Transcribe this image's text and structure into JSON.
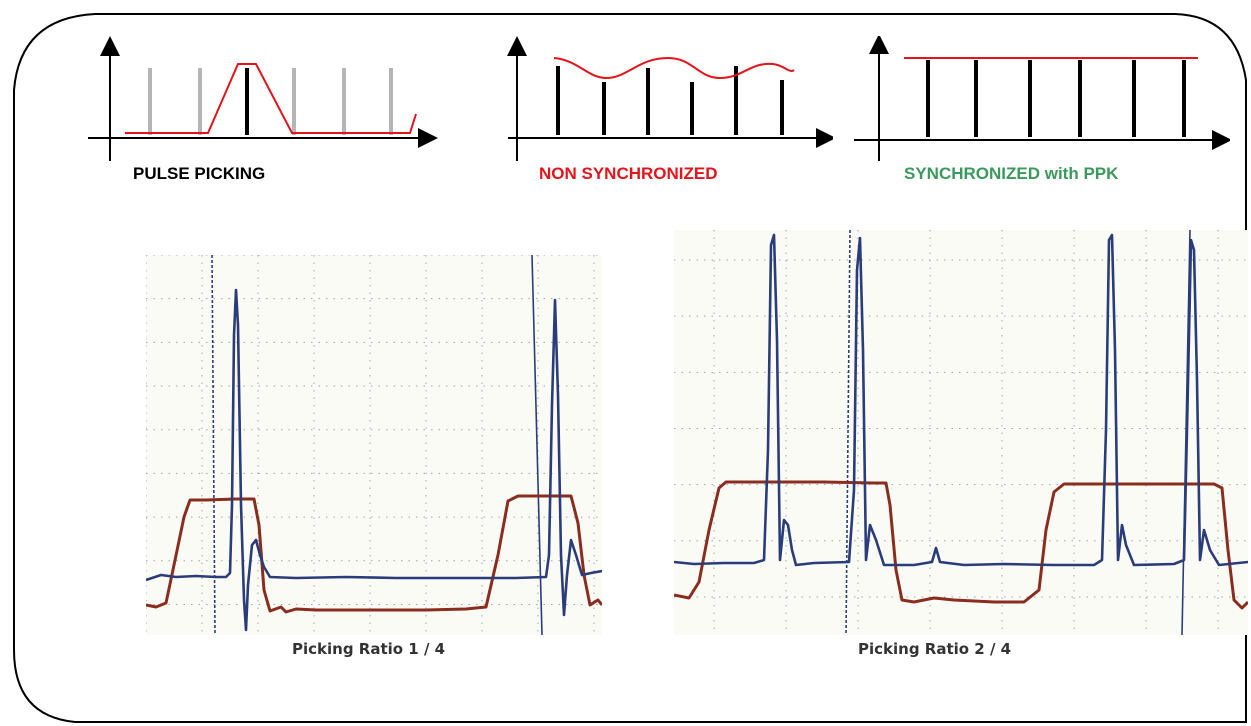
{
  "diagrams": {
    "pulse_picking": {
      "label": "PULSE PICKING",
      "label_color": "#000000"
    },
    "non_synchronized": {
      "label": "NON SYNCHRONIZED",
      "label_color": "#e3141b"
    },
    "synchronized": {
      "label": "SYNCHRONIZED with PPK",
      "label_color": "#3a9a5b"
    }
  },
  "scopes": [
    {
      "caption": "Picking Ratio  1 / 4"
    },
    {
      "caption": "Picking Ratio  2 / 4"
    }
  ],
  "colors": {
    "pulse": "#000000",
    "suppressed_pulse": "#b5b5b5",
    "envelope": "#e3141b",
    "trace_blue": "#2a3d7a",
    "trace_red": "#8a2d1e",
    "grid": "#9aa4b8"
  }
}
